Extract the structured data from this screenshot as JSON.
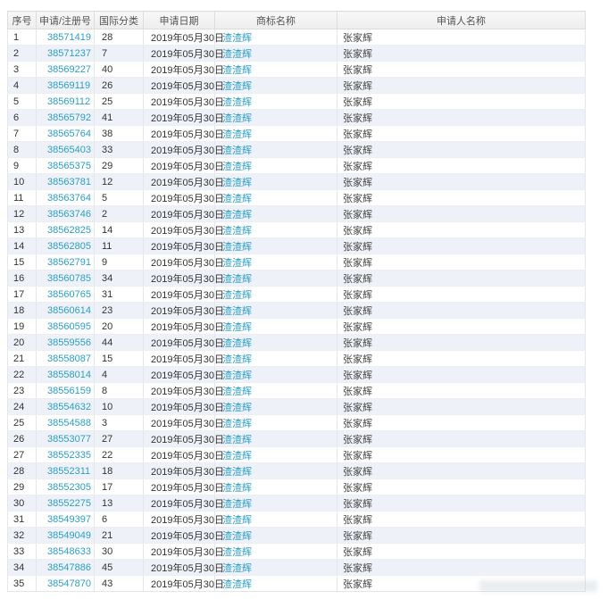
{
  "table": {
    "columns": [
      {
        "key": "no",
        "label": "序号"
      },
      {
        "key": "reg_no",
        "label": "申请/注册号"
      },
      {
        "key": "intl_class",
        "label": "国际分类"
      },
      {
        "key": "date",
        "label": "申请日期"
      },
      {
        "key": "name",
        "label": "商标名称"
      },
      {
        "key": "applicant",
        "label": "申请人名称"
      }
    ],
    "rows": [
      [
        "1",
        "38571419",
        "28",
        "2019年05月30日",
        "渣渣辉",
        "张家辉"
      ],
      [
        "2",
        "38571237",
        "7",
        "2019年05月30日",
        "渣渣辉",
        "张家辉"
      ],
      [
        "3",
        "38569227",
        "40",
        "2019年05月30日",
        "渣渣辉",
        "张家辉"
      ],
      [
        "4",
        "38569119",
        "26",
        "2019年05月30日",
        "渣渣辉",
        "张家辉"
      ],
      [
        "5",
        "38569112",
        "25",
        "2019年05月30日",
        "渣渣辉",
        "张家辉"
      ],
      [
        "6",
        "38565792",
        "41",
        "2019年05月30日",
        "渣渣辉",
        "张家辉"
      ],
      [
        "7",
        "38565764",
        "38",
        "2019年05月30日",
        "渣渣辉",
        "张家辉"
      ],
      [
        "8",
        "38565403",
        "33",
        "2019年05月30日",
        "渣渣辉",
        "张家辉"
      ],
      [
        "9",
        "38565375",
        "29",
        "2019年05月30日",
        "渣渣辉",
        "张家辉"
      ],
      [
        "10",
        "38563781",
        "12",
        "2019年05月30日",
        "渣渣辉",
        "张家辉"
      ],
      [
        "11",
        "38563764",
        "5",
        "2019年05月30日",
        "渣渣辉",
        "张家辉"
      ],
      [
        "12",
        "38563746",
        "2",
        "2019年05月30日",
        "渣渣辉",
        "张家辉"
      ],
      [
        "13",
        "38562825",
        "14",
        "2019年05月30日",
        "渣渣辉",
        "张家辉"
      ],
      [
        "14",
        "38562805",
        "11",
        "2019年05月30日",
        "渣渣辉",
        "张家辉"
      ],
      [
        "15",
        "38562791",
        "9",
        "2019年05月30日",
        "渣渣辉",
        "张家辉"
      ],
      [
        "16",
        "38560785",
        "34",
        "2019年05月30日",
        "渣渣辉",
        "张家辉"
      ],
      [
        "17",
        "38560765",
        "31",
        "2019年05月30日",
        "渣渣辉",
        "张家辉"
      ],
      [
        "18",
        "38560614",
        "23",
        "2019年05月30日",
        "渣渣辉",
        "张家辉"
      ],
      [
        "19",
        "38560595",
        "20",
        "2019年05月30日",
        "渣渣辉",
        "张家辉"
      ],
      [
        "20",
        "38559556",
        "44",
        "2019年05月30日",
        "渣渣辉",
        "张家辉"
      ],
      [
        "21",
        "38558087",
        "15",
        "2019年05月30日",
        "渣渣辉",
        "张家辉"
      ],
      [
        "22",
        "38558014",
        "4",
        "2019年05月30日",
        "渣渣辉",
        "张家辉"
      ],
      [
        "23",
        "38556159",
        "8",
        "2019年05月30日",
        "渣渣辉",
        "张家辉"
      ],
      [
        "24",
        "38554632",
        "10",
        "2019年05月30日",
        "渣渣辉",
        "张家辉"
      ],
      [
        "25",
        "38554588",
        "3",
        "2019年05月30日",
        "渣渣辉",
        "张家辉"
      ],
      [
        "26",
        "38553077",
        "27",
        "2019年05月30日",
        "渣渣辉",
        "张家辉"
      ],
      [
        "27",
        "38552335",
        "22",
        "2019年05月30日",
        "渣渣辉",
        "张家辉"
      ],
      [
        "28",
        "38552311",
        "18",
        "2019年05月30日",
        "渣渣辉",
        "张家辉"
      ],
      [
        "29",
        "38552305",
        "17",
        "2019年05月30日",
        "渣渣辉",
        "张家辉"
      ],
      [
        "30",
        "38552275",
        "13",
        "2019年05月30日",
        "渣渣辉",
        "张家辉"
      ],
      [
        "31",
        "38549397",
        "6",
        "2019年05月30日",
        "渣渣辉",
        "张家辉"
      ],
      [
        "32",
        "38549049",
        "21",
        "2019年05月30日",
        "渣渣辉",
        "张家辉"
      ],
      [
        "33",
        "38548633",
        "30",
        "2019年05月30日",
        "渣渣辉",
        "张家辉"
      ],
      [
        "34",
        "38547886",
        "45",
        "2019年05月30日",
        "渣渣辉",
        "张家辉"
      ],
      [
        "35",
        "38547870",
        "43",
        "2019年05月30日",
        "渣渣辉",
        "张家辉"
      ]
    ]
  },
  "colors": {
    "link": "#2b9fc3",
    "stripe": "#eef2f8",
    "border": "#e3e6ea",
    "header_bg": "#f0f0f0",
    "text": "#333333"
  }
}
